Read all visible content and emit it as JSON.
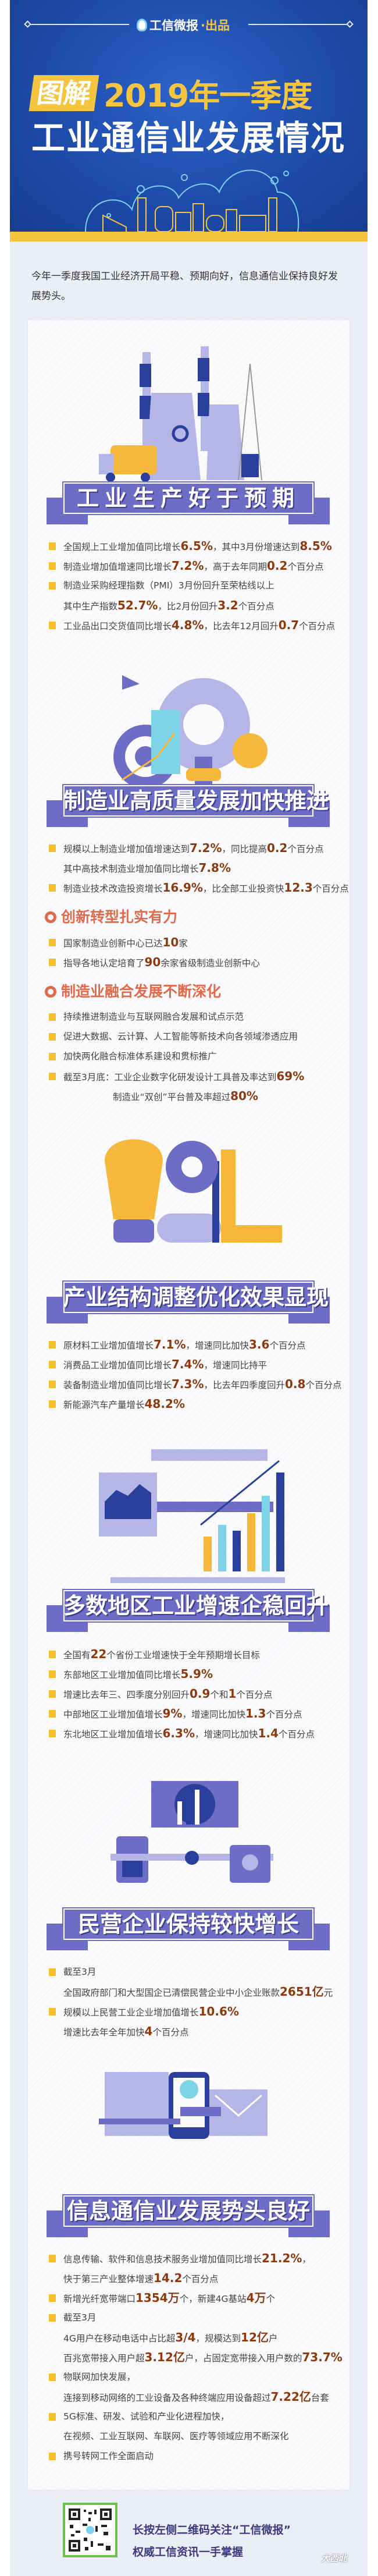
{
  "header": {
    "brand_name": "工信微报",
    "brand_suffix": "·出品",
    "tag": "图解",
    "title_line1": "2019年一季度",
    "title_line2": "工业通信业发展情况"
  },
  "intro": "今年一季度我国工业经济开局平稳、预期向好，信息通信业保持良好发展势头。",
  "colors": {
    "header_blue": "#1d4aa8",
    "accent_yellow": "#f5c53f",
    "banner_purple": "#6e6dc6",
    "highlight": "#8c3a0e",
    "subhead": "#e06a4a"
  },
  "sections": [
    {
      "title": "工业生产好于预期",
      "illustration": "factory-truck-icon",
      "blocks": [
        {
          "bullet": true,
          "segs": [
            {
              "t": "全国规上工业增加值同比增长"
            },
            {
              "t": "6.5%",
              "hi": true
            },
            {
              "t": "，其中3月份增速达到"
            },
            {
              "t": "8.5%",
              "hi": true
            }
          ]
        },
        {
          "bullet": true,
          "segs": [
            {
              "t": "制造业增加值增速同比增长"
            },
            {
              "t": "7.2%",
              "hi": true
            },
            {
              "t": "，高于去年同期"
            },
            {
              "t": "0.2",
              "hi": true
            },
            {
              "t": "个百分点"
            }
          ]
        },
        {
          "bullet": true,
          "segs": [
            {
              "t": "制造业采购经理指数（PMI）3月份回升至荣枯线以上"
            }
          ]
        },
        {
          "bullet": false,
          "segs": [
            {
              "t": "其中生产指数"
            },
            {
              "t": "52.7%",
              "hi": true
            },
            {
              "t": "，比2月份回升"
            },
            {
              "t": "3.2",
              "hi": true
            },
            {
              "t": "个百分点"
            }
          ]
        },
        {
          "bullet": true,
          "segs": [
            {
              "t": "工业品出口交货值同比增长"
            },
            {
              "t": "4.8%",
              "hi": true
            },
            {
              "t": "，比去年12月回升"
            },
            {
              "t": "0.7",
              "hi": true
            },
            {
              "t": "个百分点"
            }
          ]
        }
      ]
    },
    {
      "title": "制造业高质量发展加快推进",
      "illustration": "gear-target-icon",
      "blocks": [
        {
          "bullet": true,
          "segs": [
            {
              "t": "规模以上制造业增加值增速达到"
            },
            {
              "t": "7.2%",
              "hi": true
            },
            {
              "t": "，同比提高"
            },
            {
              "t": "0.2",
              "hi": true
            },
            {
              "t": "个百分点"
            }
          ]
        },
        {
          "bullet": false,
          "segs": [
            {
              "t": "其中高技术制造业增加值同比增长"
            },
            {
              "t": "7.8%",
              "hi": true
            }
          ]
        },
        {
          "bullet": true,
          "segs": [
            {
              "t": "制造业技术改造投资增长"
            },
            {
              "t": "16.9%",
              "hi": true
            },
            {
              "t": "，比全部工业投资快"
            },
            {
              "t": "12.3",
              "hi": true
            },
            {
              "t": "个百分点"
            }
          ]
        },
        {
          "subhead": "创新转型扎实有力"
        },
        {
          "bullet": true,
          "segs": [
            {
              "t": "国家制造业创新中心已达"
            },
            {
              "t": "10",
              "hi": true
            },
            {
              "t": "家"
            }
          ]
        },
        {
          "bullet": true,
          "segs": [
            {
              "t": "指导各地认定培育了"
            },
            {
              "t": "90",
              "hi": true
            },
            {
              "t": "余家省级制造业创新中心"
            }
          ]
        },
        {
          "subhead": "制造业融合发展不断深化"
        },
        {
          "bullet": true,
          "segs": [
            {
              "t": "持续推进制造业与互联网融合发展和试点示范"
            }
          ]
        },
        {
          "bullet": true,
          "segs": [
            {
              "t": "促进大数据、云计算、人工智能等新技术向各领域渗透应用"
            }
          ]
        },
        {
          "bullet": true,
          "segs": [
            {
              "t": "加快两化融合标准体系建设和贯标推广"
            }
          ]
        },
        {
          "bullet": true,
          "segs": [
            {
              "t": "截至3月底：工业企业数字化研发设计工具普及率达到"
            },
            {
              "t": "69%",
              "hi": true
            }
          ]
        },
        {
          "bullet": false,
          "center": true,
          "segs": [
            {
              "t": "制造业“双创”平台普及率超过"
            },
            {
              "t": "80%",
              "hi": true
            }
          ]
        }
      ]
    },
    {
      "title": "产业结构调整优化效果显现",
      "illustration": "lightbulb-ruler-icon",
      "blocks": [
        {
          "bullet": true,
          "segs": [
            {
              "t": "原材料工业增加值增长"
            },
            {
              "t": "7.1%",
              "hi": true
            },
            {
              "t": "，增速同比加快"
            },
            {
              "t": "3.6",
              "hi": true
            },
            {
              "t": "个百分点"
            }
          ]
        },
        {
          "bullet": true,
          "segs": [
            {
              "t": "消费品工业增加值同比增长"
            },
            {
              "t": "7.4%",
              "hi": true
            },
            {
              "t": "，增速同比持平"
            }
          ]
        },
        {
          "bullet": true,
          "segs": [
            {
              "t": "装备制造业增加值同比增长"
            },
            {
              "t": "7.3%",
              "hi": true
            },
            {
              "t": "，比去年四季度回升"
            },
            {
              "t": "0.8",
              "hi": true
            },
            {
              "t": "个百分点"
            }
          ]
        },
        {
          "bullet": true,
          "segs": [
            {
              "t": "新能源汽车产量增长"
            },
            {
              "t": "48.2%",
              "hi": true
            }
          ]
        }
      ]
    },
    {
      "title": "多数地区工业增速企稳回升",
      "illustration": "bar-chart-people-icon",
      "blocks": [
        {
          "bullet": true,
          "segs": [
            {
              "t": "全国有"
            },
            {
              "t": "22",
              "hi": true
            },
            {
              "t": "个省份工业增速快于全年预期增长目标"
            }
          ]
        },
        {
          "bullet": true,
          "segs": [
            {
              "t": "东部地区工业增加值同比增长"
            },
            {
              "t": "5.9%",
              "hi": true
            }
          ]
        },
        {
          "bullet": true,
          "segs": [
            {
              "t": "增速比去年三、四季度分别回升"
            },
            {
              "t": "0.9",
              "hi": true
            },
            {
              "t": "个和"
            },
            {
              "t": "1",
              "hi": true
            },
            {
              "t": "个百分点"
            }
          ]
        },
        {
          "bullet": true,
          "segs": [
            {
              "t": "中部地区工业增加值增长"
            },
            {
              "t": "9%",
              "hi": true
            },
            {
              "t": "，增速同比加快"
            },
            {
              "t": "1.3",
              "hi": true
            },
            {
              "t": "个百分点"
            }
          ]
        },
        {
          "bullet": true,
          "segs": [
            {
              "t": "东北地区工业增加值增长"
            },
            {
              "t": "6.3%",
              "hi": true
            },
            {
              "t": "，增速同比加快"
            },
            {
              "t": "1.4",
              "hi": true
            },
            {
              "t": "个百分点"
            }
          ]
        }
      ]
    },
    {
      "title": "民营企业保持较快增长",
      "illustration": "calculator-monitor-icon",
      "blocks": [
        {
          "bullet": true,
          "segs": [
            {
              "t": "截至3月"
            }
          ]
        },
        {
          "bullet": false,
          "segs": [
            {
              "t": "全国政府部门和大型国企已清偿民营企业中小企业账款"
            },
            {
              "t": "2651亿",
              "hi": true
            },
            {
              "t": "元"
            }
          ]
        },
        {
          "bullet": true,
          "segs": [
            {
              "t": "规模以上民营工业企业增加值增长"
            },
            {
              "t": "10.6%",
              "hi": true
            }
          ]
        },
        {
          "bullet": false,
          "segs": [
            {
              "t": "增速比去年全年加快"
            },
            {
              "t": "4",
              "hi": true
            },
            {
              "t": "个百分点"
            }
          ]
        }
      ]
    },
    {
      "title": "信息通信业发展势头良好",
      "illustration": "phone-network-icon",
      "blocks": [
        {
          "bullet": true,
          "segs": [
            {
              "t": "信息传输、软件和信息技术服务业增加值同比增长"
            },
            {
              "t": "21.2%",
              "hi": true
            },
            {
              "t": "，"
            }
          ]
        },
        {
          "bullet": false,
          "segs": [
            {
              "t": "快于第三产业整体增速"
            },
            {
              "t": "14.2",
              "hi": true
            },
            {
              "t": "个百分点"
            }
          ]
        },
        {
          "bullet": true,
          "segs": [
            {
              "t": "新增光纤宽带端口"
            },
            {
              "t": "1354万",
              "hi": true
            },
            {
              "t": "个，新建4G基站"
            },
            {
              "t": "4万",
              "hi": true
            },
            {
              "t": "个"
            }
          ]
        },
        {
          "bullet": true,
          "segs": [
            {
              "t": "截至3月"
            }
          ]
        },
        {
          "bullet": false,
          "segs": [
            {
              "t": "4G用户在移动电话中占比超"
            },
            {
              "t": "3/4",
              "hi": true
            },
            {
              "t": "，规模达到"
            },
            {
              "t": "12亿",
              "hi": true
            },
            {
              "t": "户"
            }
          ]
        },
        {
          "bullet": false,
          "segs": [
            {
              "t": "百兆宽带接入用户超"
            },
            {
              "t": "3.12亿",
              "hi": true
            },
            {
              "t": "户，占固定宽带接入用户数的"
            },
            {
              "t": "73.7%",
              "hi": true
            }
          ]
        },
        {
          "bullet": true,
          "segs": [
            {
              "t": "物联网加快发展，"
            }
          ]
        },
        {
          "bullet": false,
          "segs": [
            {
              "t": "连接到移动网络的工业设备及各种终端应用设备超过"
            },
            {
              "t": "7.22亿",
              "hi": true
            },
            {
              "t": "台套"
            }
          ]
        },
        {
          "bullet": true,
          "segs": [
            {
              "t": "5G标准、研发、试验和产业化进程加快，"
            }
          ]
        },
        {
          "bullet": false,
          "segs": [
            {
              "t": "在视频、工业互联网、车联网、医疗等领域应用不断深化"
            }
          ]
        },
        {
          "bullet": true,
          "segs": [
            {
              "t": "携号转网工作全面启动"
            }
          ]
        }
      ]
    }
  ],
  "footer": {
    "follow_line1": "长按左侧二维码关注“工信微报”",
    "follow_line2": "权威工信资讯一手掌握",
    "qr_icon": "qr-code-icon",
    "watermark": "大西北 www.dxbei.com"
  }
}
